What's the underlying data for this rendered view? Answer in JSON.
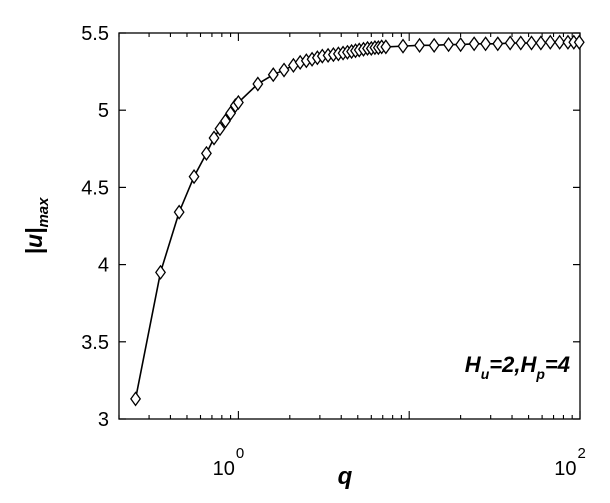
{
  "chart_data": {
    "type": "line",
    "xscale": "log",
    "xlim": [
      0.2,
      100
    ],
    "ylim": [
      3,
      5.5
    ],
    "x_ticks": [
      {
        "base": "10",
        "exp": "0"
      },
      {
        "base": "10",
        "exp": "2"
      }
    ],
    "y_ticks": [
      "3",
      "3.5",
      "4",
      "4.5",
      "5",
      "5.5"
    ],
    "xlabel": "q",
    "ylabel": {
      "base": "|u|",
      "sub": "max"
    },
    "annotation": {
      "h1": "H",
      "s1": "u",
      "t1": "=2,",
      "h2": "H",
      "s2": "p",
      "t2": "=4"
    },
    "grid": false,
    "marker": "diamond",
    "line_color": "#000000",
    "series": [
      {
        "x": [
          0.25,
          0.35,
          0.45,
          0.55,
          0.65,
          0.72,
          0.78,
          0.84,
          0.9,
          0.96,
          1.0,
          1.3,
          1.6,
          1.85,
          2.1,
          2.3,
          2.5,
          2.7,
          2.9,
          3.1,
          3.35,
          3.6,
          3.85,
          4.1,
          4.35,
          4.6,
          4.85,
          5.1,
          5.4,
          5.7,
          6.0,
          6.3,
          6.6,
          6.9,
          7.3,
          9.2,
          11.5,
          14.0,
          17.0,
          20.0,
          24.0,
          28.0,
          33.0,
          39.0,
          45.0,
          52.0,
          59.0,
          67.0,
          76.0,
          85.0,
          92.0,
          99.0
        ],
        "y": [
          3.13,
          3.95,
          4.34,
          4.57,
          4.72,
          4.82,
          4.88,
          4.93,
          4.98,
          5.03,
          5.05,
          5.17,
          5.23,
          5.26,
          5.29,
          5.31,
          5.32,
          5.33,
          5.34,
          5.35,
          5.355,
          5.36,
          5.365,
          5.37,
          5.375,
          5.38,
          5.385,
          5.39,
          5.395,
          5.4,
          5.4,
          5.405,
          5.405,
          5.41,
          5.41,
          5.415,
          5.42,
          5.42,
          5.425,
          5.425,
          5.43,
          5.43,
          5.43,
          5.435,
          5.435,
          5.435,
          5.435,
          5.44,
          5.44,
          5.44,
          5.44,
          5.44
        ]
      }
    ]
  }
}
